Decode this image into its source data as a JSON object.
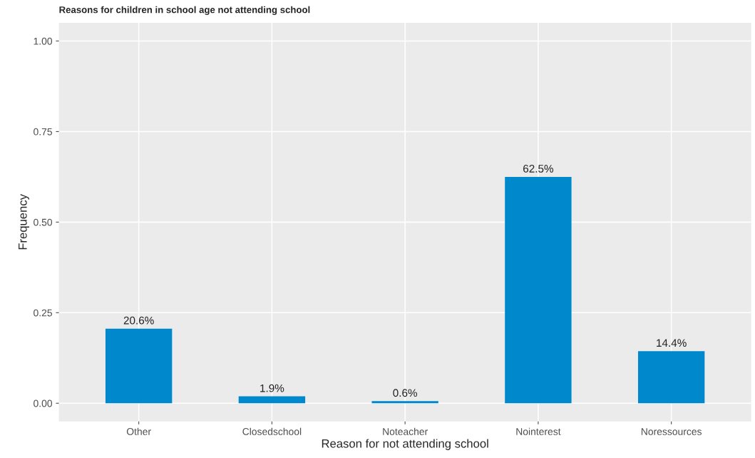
{
  "chart_data": {
    "type": "bar",
    "title": "Reasons for children in school age not attending school",
    "xlabel": "Reason for not attending school",
    "ylabel": "Frequency",
    "categories": [
      "Other",
      "Closedschool",
      "Noteacher",
      "Nointerest",
      "Noressources"
    ],
    "values": [
      0.206,
      0.019,
      0.006,
      0.625,
      0.144
    ],
    "value_labels": [
      "20.6%",
      "1.9%",
      "0.6%",
      "62.5%",
      "14.4%"
    ],
    "color": "#0088cc",
    "ylim": [
      -0.05,
      1.05
    ],
    "yticks": [
      {
        "value": 0,
        "label": "0.00"
      },
      {
        "value": 0.25,
        "label": "0.25"
      },
      {
        "value": 0.5,
        "label": "0.50"
      },
      {
        "value": 0.75,
        "label": "0.75"
      },
      {
        "value": 1,
        "label": "1.00"
      }
    ],
    "grid": true
  }
}
